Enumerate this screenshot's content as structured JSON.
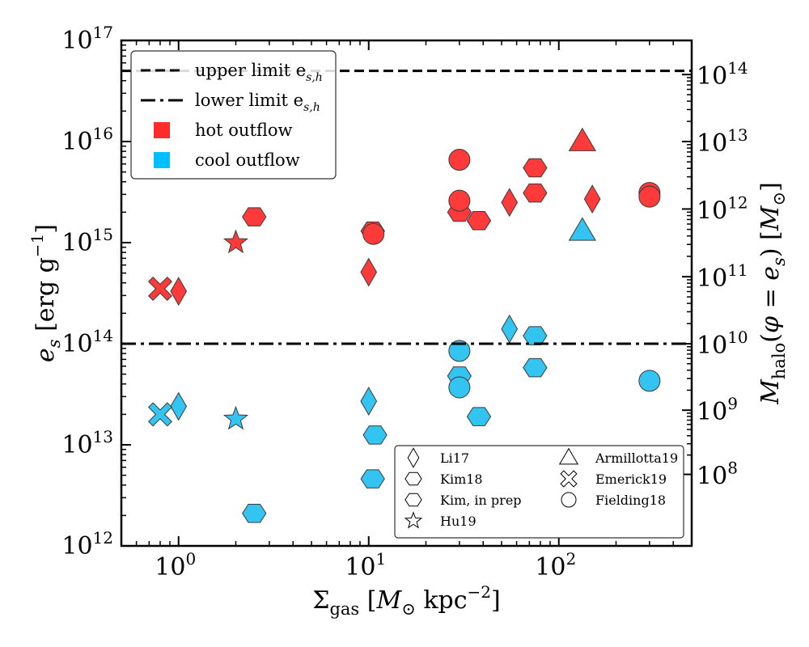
{
  "chart_data": {
    "type": "scatter",
    "x_scale": "log",
    "y_scale": "log",
    "xlim": [
      0.5,
      500
    ],
    "ylim": [
      1000000000000.0,
      1e+17
    ],
    "xlabel": "Σgas [M⊙ kpc⁻²]",
    "ylabel": "es [erg g⁻¹]",
    "right_axis": {
      "label": "Mhalo(φ = es)  [M⊙]",
      "ticks": [
        {
          "exp": "8",
          "at_left_y": 5100000000000.0
        },
        {
          "exp": "9",
          "at_left_y": 22000000000000.0
        },
        {
          "exp": "10",
          "at_left_y": 100000000000000.0
        },
        {
          "exp": "11",
          "at_left_y": 460000000000000.0
        },
        {
          "exp": "12",
          "at_left_y": 2150000000000000.0
        },
        {
          "exp": "13",
          "at_left_y": 1e+16
        },
        {
          "exp": "14",
          "at_left_y": 4.6e+16
        }
      ]
    },
    "x_ticks": [
      {
        "base": "10",
        "exp": "0",
        "value": 1
      },
      {
        "base": "10",
        "exp": "1",
        "value": 10
      },
      {
        "base": "10",
        "exp": "2",
        "value": 100
      }
    ],
    "y_ticks": [
      {
        "base": "10",
        "exp": "12",
        "value": 1000000000000.0
      },
      {
        "base": "10",
        "exp": "13",
        "value": 10000000000000.0
      },
      {
        "base": "10",
        "exp": "14",
        "value": 100000000000000.0
      },
      {
        "base": "10",
        "exp": "15",
        "value": 1000000000000000.0
      },
      {
        "base": "10",
        "exp": "16",
        "value": 1e+16
      },
      {
        "base": "10",
        "exp": "17",
        "value": 1e+17
      }
    ],
    "reference_lines": [
      {
        "name": "upper limit",
        "value": 5e+16,
        "style": "dashed"
      },
      {
        "name": "lower limit",
        "value": 100000000000000.0,
        "style": "dashdot"
      }
    ],
    "colors": {
      "hot": "#ff3a3a",
      "cool": "#33c4f2",
      "hot_fill": "#ff2b2b",
      "cool_fill": "#00bfff"
    },
    "legend_main": [
      {
        "style": "dashed",
        "text": "upper limit e",
        "sub": "s,h"
      },
      {
        "style": "dashdot",
        "text": "lower limit e",
        "sub": "s,h"
      },
      {
        "style": "hot",
        "text": "hot outflow"
      },
      {
        "style": "cool",
        "text": "cool outflow"
      }
    ],
    "legend_markers": [
      {
        "marker": "diamond",
        "text": "Li17"
      },
      {
        "marker": "hexagon",
        "text": "Kim18"
      },
      {
        "marker": "hexagon2",
        "text": "Kim, in prep"
      },
      {
        "marker": "star",
        "text": "Hu19"
      },
      {
        "marker": "triangle",
        "text": "Armillotta19"
      },
      {
        "marker": "cross",
        "text": "Emerick19"
      },
      {
        "marker": "circle",
        "text": "Fielding18"
      }
    ],
    "series": [
      {
        "name": "Li17 hot",
        "marker": "diamond",
        "phase": "hot",
        "points": [
          [
            1.0,
            330000000000000.0
          ],
          [
            10,
            510000000000000.0
          ],
          [
            55,
            2500000000000000.0
          ],
          [
            150,
            2700000000000000.0
          ]
        ]
      },
      {
        "name": "Li17 cool",
        "marker": "diamond",
        "phase": "cool",
        "points": [
          [
            1.0,
            24000000000000.0
          ],
          [
            10,
            27000000000000.0
          ],
          [
            55,
            140000000000000.0
          ]
        ]
      },
      {
        "name": "Kim18 hot",
        "marker": "hexagon",
        "phase": "hot",
        "points": [
          [
            2.5,
            1800000000000000.0
          ],
          [
            10.5,
            1300000000000000.0
          ],
          [
            30,
            2000000000000000.0
          ],
          [
            38,
            1650000000000000.0
          ],
          [
            75,
            5500000000000000.0
          ],
          [
            75,
            3100000000000000.0
          ]
        ]
      },
      {
        "name": "Kim18 cool",
        "marker": "hexagon",
        "phase": "cool",
        "points": [
          [
            2.5,
            2100000000000.0
          ],
          [
            10.5,
            4600000000000.0
          ],
          [
            10.8,
            12500000000000.0
          ],
          [
            30,
            48000000000000.0
          ],
          [
            38,
            19000000000000.0
          ],
          [
            75,
            120000000000000.0
          ],
          [
            75,
            58000000000000.0
          ]
        ]
      },
      {
        "name": "Hu19 hot",
        "marker": "star",
        "phase": "hot",
        "points": [
          [
            2.0,
            1000000000000000.0
          ]
        ]
      },
      {
        "name": "Hu19 cool",
        "marker": "star",
        "phase": "cool",
        "points": [
          [
            2.0,
            18000000000000.0
          ]
        ]
      },
      {
        "name": "Armillotta19 hot",
        "marker": "triangle",
        "phase": "hot",
        "points": [
          [
            133,
            1e+16
          ]
        ]
      },
      {
        "name": "Armillotta19 cool",
        "marker": "triangle",
        "phase": "cool",
        "points": [
          [
            133,
            1300000000000000.0
          ]
        ]
      },
      {
        "name": "Emerick19 hot",
        "marker": "cross",
        "phase": "hot",
        "points": [
          [
            0.8,
            350000000000000.0
          ]
        ]
      },
      {
        "name": "Emerick19 cool",
        "marker": "cross",
        "phase": "cool",
        "points": [
          [
            0.8,
            20000000000000.0
          ]
        ]
      },
      {
        "name": "Fielding18 hot",
        "marker": "circle",
        "phase": "hot",
        "points": [
          [
            10.6,
            1220000000000000.0
          ],
          [
            30,
            6600000000000000.0
          ],
          [
            30,
            2600000000000000.0
          ],
          [
            300,
            3100000000000000.0
          ],
          [
            300,
            2850000000000000.0
          ]
        ]
      },
      {
        "name": "Fielding18 cool",
        "marker": "circle",
        "phase": "cool",
        "points": [
          [
            30,
            85000000000000.0
          ],
          [
            30,
            37000000000000.0
          ],
          [
            300,
            43000000000000.0
          ]
        ]
      }
    ]
  }
}
